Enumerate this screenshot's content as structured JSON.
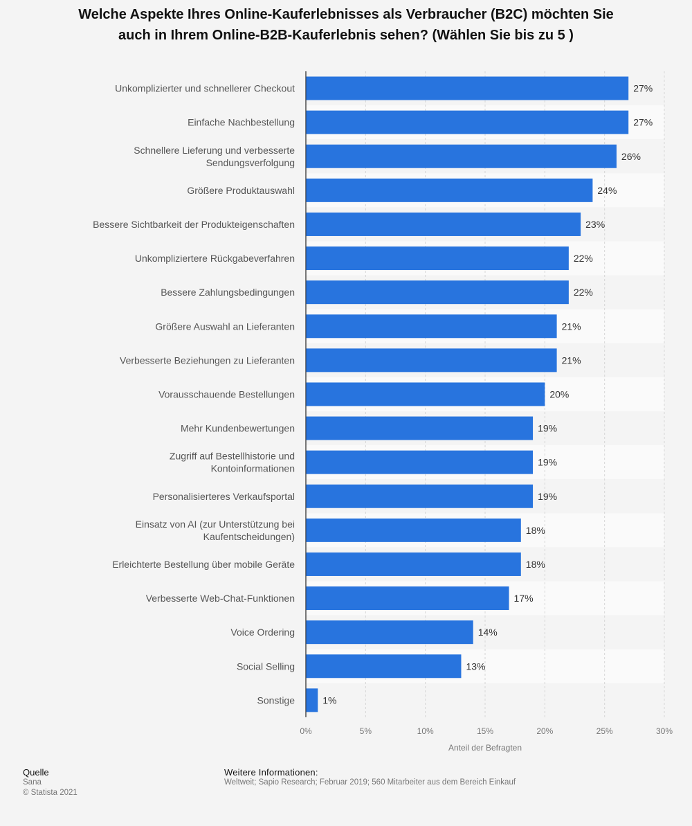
{
  "chart_data": {
    "type": "bar",
    "orientation": "horizontal",
    "title_lines": [
      "Welche Aspekte Ihres Online-Kauferlebnisses als Verbraucher (B2C) möchten Sie",
      "auch in Ihrem Online-B2B-Kauferlebnis sehen? (Wählen Sie bis zu 5 )"
    ],
    "xlabel": "Anteil der Befragten",
    "xlim": [
      0,
      30
    ],
    "xticks": [
      "0%",
      "5%",
      "10%",
      "15%",
      "20%",
      "25%",
      "30%"
    ],
    "xtick_values": [
      0,
      5,
      10,
      15,
      20,
      25,
      30
    ],
    "grid": true,
    "bar_color": "#2874de",
    "categories": [
      [
        "Unkomplizierter und schnellerer Checkout"
      ],
      [
        "Einfache Nachbestellung"
      ],
      [
        "Schnellere Lieferung und verbesserte",
        "Sendungsverfolgung"
      ],
      [
        "Größere Produktauswahl"
      ],
      [
        "Bessere Sichtbarkeit der Produkteigenschaften"
      ],
      [
        "Unkompliziertere Rückgabeverfahren"
      ],
      [
        "Bessere Zahlungsbedingungen"
      ],
      [
        "Größere Auswahl an Lieferanten"
      ],
      [
        "Verbesserte Beziehungen zu Lieferanten"
      ],
      [
        "Vorausschauende Bestellungen"
      ],
      [
        "Mehr Kundenbewertungen"
      ],
      [
        "Zugriff auf Bestellhistorie und",
        "Kontoinformationen"
      ],
      [
        "Personalisierteres Verkaufsportal"
      ],
      [
        "Einsatz von AI (zur Unterstützung bei",
        "Kaufentscheidungen)"
      ],
      [
        "Erleichterte Bestellung über mobile Geräte"
      ],
      [
        "Verbesserte Web-Chat-Funktionen"
      ],
      [
        "Voice Ordering"
      ],
      [
        "Social Selling"
      ],
      [
        "Sonstige"
      ]
    ],
    "values": [
      27,
      27,
      26,
      24,
      23,
      22,
      22,
      21,
      21,
      20,
      19,
      19,
      19,
      18,
      18,
      17,
      14,
      13,
      1
    ],
    "value_labels": [
      "27%",
      "27%",
      "26%",
      "24%",
      "23%",
      "22%",
      "22%",
      "21%",
      "21%",
      "20%",
      "19%",
      "19%",
      "19%",
      "18%",
      "18%",
      "17%",
      "14%",
      "13%",
      "1%"
    ]
  },
  "footer": {
    "source_heading": "Quelle",
    "source": "Sana",
    "copyright": "© Statista 2021",
    "info_heading": "Weitere Informationen:",
    "info": "Weltweit; Sapio Research; Februar 2019; 560 Mitarbeiter aus dem Bereich Einkauf"
  }
}
